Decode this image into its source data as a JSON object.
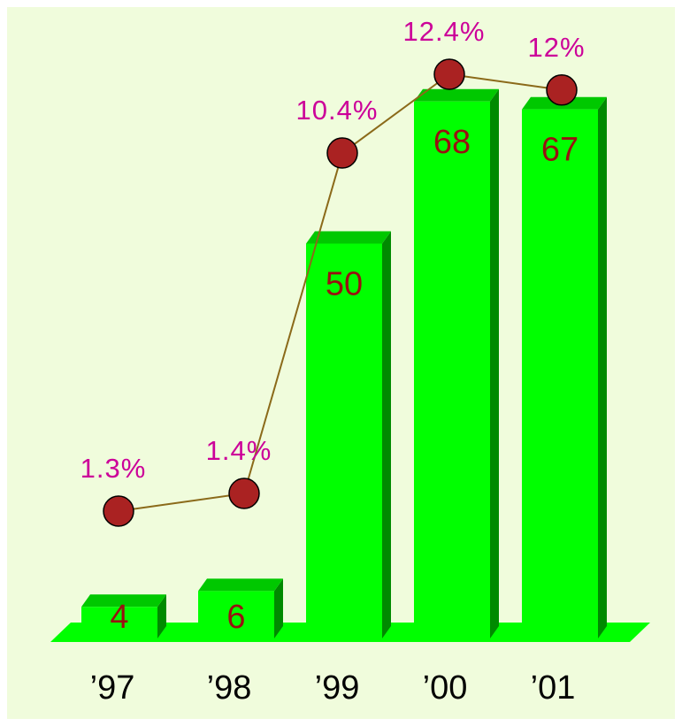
{
  "chart_data": {
    "type": "bar",
    "categories": [
      "’97",
      "’98",
      "’99",
      "’00",
      "’01"
    ],
    "values": [
      4,
      6,
      50,
      68,
      67
    ],
    "value_labels": [
      "4",
      "6",
      "50",
      "68",
      "67"
    ],
    "line_series": {
      "values": [
        1.3,
        1.4,
        10.4,
        12.4,
        12
      ],
      "labels": [
        "1.3%",
        "1.4%",
        "10.4%",
        "12.4%",
        "12%"
      ]
    },
    "title": "",
    "xlabel": "",
    "ylabel": "",
    "grid": false,
    "legend": "none",
    "colors": {
      "bar_front": "#00ff00",
      "bar_side": "#008a00",
      "bar_top": "#00c800",
      "floor": "#00ff00",
      "value_text": "#991111",
      "pct_text": "#cc0099",
      "marker_fill": "#aa2222",
      "line": "#8b6a1a",
      "background": "#f0fcdc",
      "category_text": "#000000"
    }
  }
}
